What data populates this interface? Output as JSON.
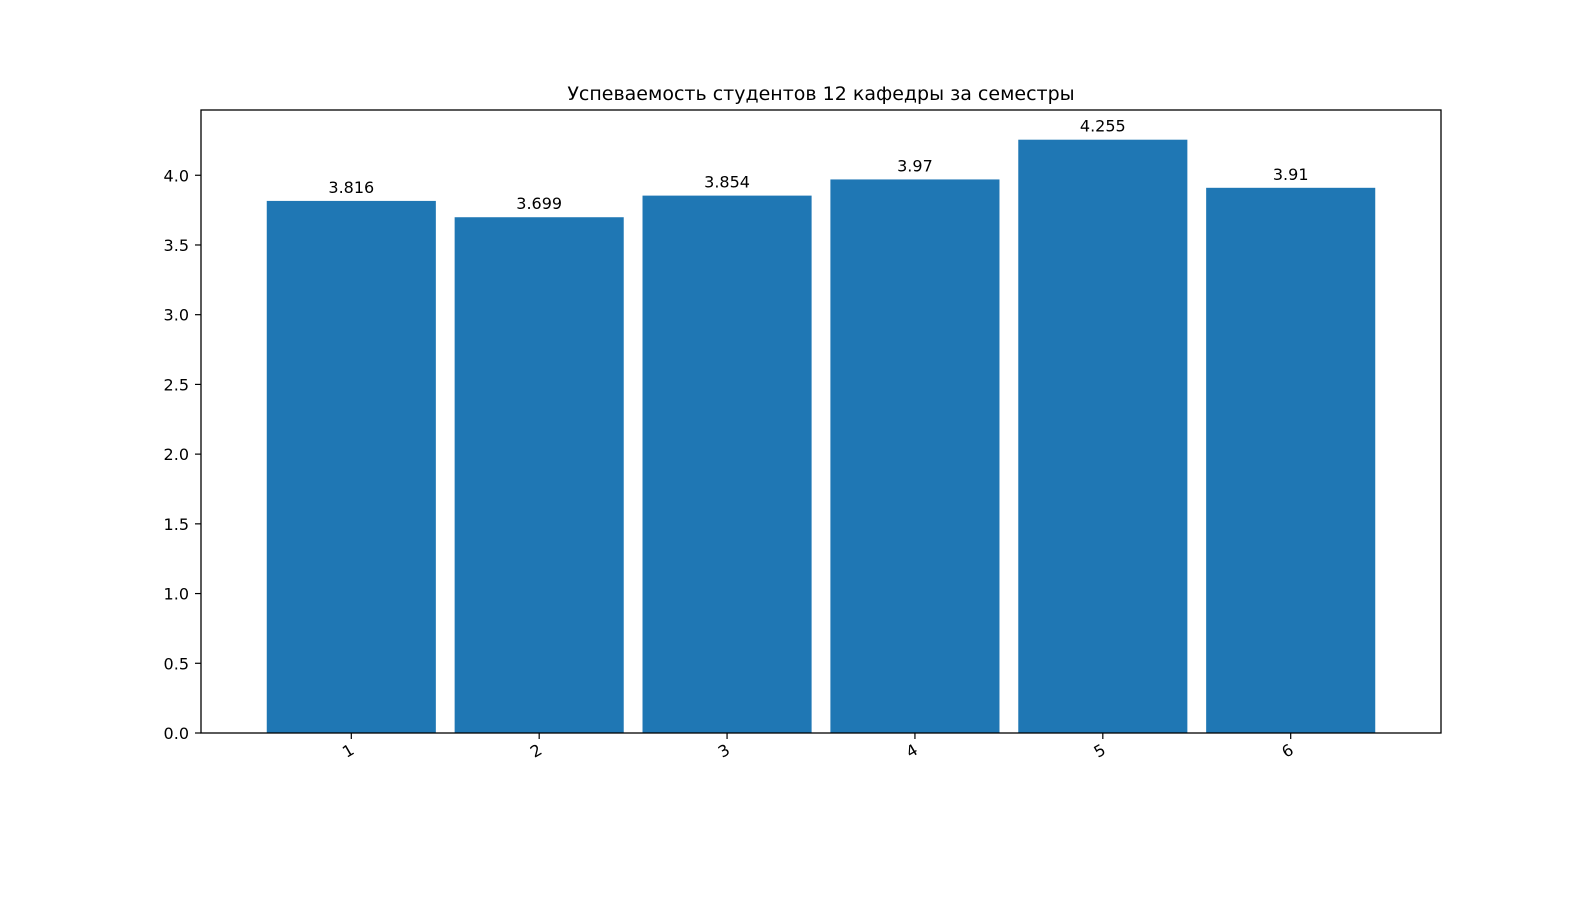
{
  "chart_data": {
    "type": "bar",
    "title": "Успеваемость студентов 12 кафедры за семестры",
    "xlabel": "",
    "ylabel": "",
    "categories": [
      "1",
      "2",
      "3",
      "4",
      "5",
      "6"
    ],
    "values": [
      3.816,
      3.699,
      3.854,
      3.97,
      4.255,
      3.91
    ],
    "value_labels": [
      "3.816",
      "3.699",
      "3.854",
      "3.97",
      "4.255",
      "3.91"
    ],
    "ylim": [
      0,
      4.468
    ],
    "yticks": [
      0.0,
      0.5,
      1.0,
      1.5,
      2.0,
      2.5,
      3.0,
      3.5,
      4.0
    ],
    "ytick_labels": [
      "0.0",
      "0.5",
      "1.0",
      "1.5",
      "2.0",
      "2.5",
      "3.0",
      "3.5",
      "4.0"
    ],
    "xtick_rotation_deg": 30,
    "bar_color": "#1f77b4",
    "grid": false,
    "legend": "none"
  }
}
